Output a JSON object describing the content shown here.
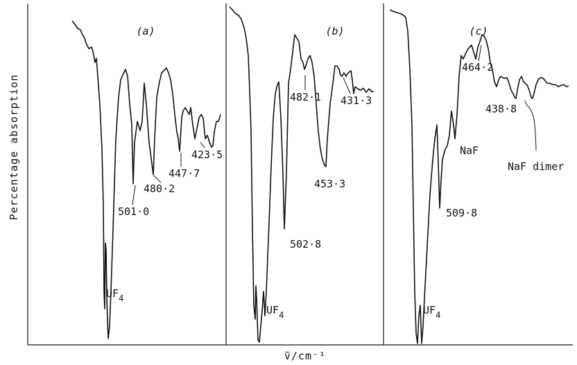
{
  "chart_data": {
    "type": "line",
    "xlabel": "ṽ/cm⁻¹",
    "ylabel": "Percentage absorption",
    "grid": false,
    "panels": [
      {
        "label": "(a)",
        "annotations": [
          {
            "text": "UF",
            "sub": "4"
          },
          {
            "text": "501·0"
          },
          {
            "text": "480·2"
          },
          {
            "text": "447·7"
          },
          {
            "text": "423·5"
          }
        ]
      },
      {
        "label": "(b)",
        "annotations": [
          {
            "text": "UF",
            "sub": "4"
          },
          {
            "text": "502·8"
          },
          {
            "text": "482·1"
          },
          {
            "text": "453·3"
          },
          {
            "text": "431·3"
          }
        ]
      },
      {
        "label": "(c)",
        "annotations": [
          {
            "text": "UF",
            "sub": "4"
          },
          {
            "text": "509·8"
          },
          {
            "text": "NaF"
          },
          {
            "text": "464·2"
          },
          {
            "text": "438·8"
          },
          {
            "text": "NaF dimer"
          }
        ]
      }
    ]
  }
}
